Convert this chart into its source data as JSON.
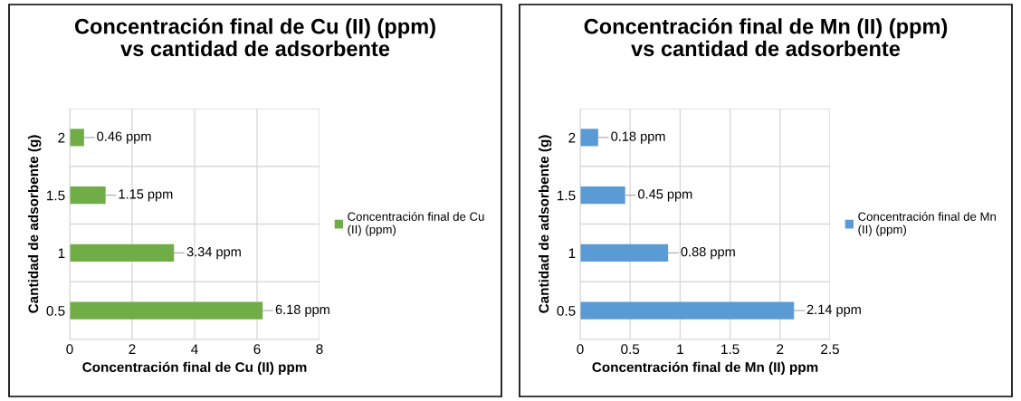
{
  "chart_data": [
    {
      "type": "bar",
      "orientation": "horizontal",
      "title": "Concentración final de Cu (II) (ppm)\nvs cantidad de adsorbente",
      "xlabel": "Concentración final de Cu (II) ppm",
      "ylabel": "Cantidad de adsorbente (g)",
      "categories": [
        "2",
        "1.5",
        "1",
        "0.5"
      ],
      "series": [
        {
          "name": "Concentración final de Cu (II) (ppm)",
          "color": "#70ad47",
          "values": [
            0.46,
            1.15,
            3.34,
            6.18
          ]
        }
      ],
      "value_labels": [
        "0.46 ppm",
        "1.15 ppm",
        "3.34 ppm",
        "6.18 ppm"
      ],
      "xlim": [
        0,
        8
      ],
      "xticks": [
        0,
        2,
        4,
        6,
        8
      ],
      "grid": "x",
      "legend": "right"
    },
    {
      "type": "bar",
      "orientation": "horizontal",
      "title": "Concentración final de Mn (II) (ppm)\nvs cantidad de adsorbente",
      "xlabel": "Concentración final de Mn (II) ppm",
      "ylabel": "Cantidad de adsorbente (g)",
      "categories": [
        "2",
        "1.5",
        "1",
        "0.5"
      ],
      "series": [
        {
          "name": "Concentración final de Mn (II) (ppm)",
          "color": "#5b9bd5",
          "values": [
            0.18,
            0.45,
            0.88,
            2.14
          ]
        }
      ],
      "value_labels": [
        "0.18 ppm",
        "0.45 ppm",
        "0.88 ppm",
        "2.14 ppm"
      ],
      "xlim": [
        0,
        2.5
      ],
      "xticks": [
        0,
        0.5,
        1,
        1.5,
        2,
        2.5
      ],
      "grid": "x",
      "legend": "right"
    }
  ]
}
